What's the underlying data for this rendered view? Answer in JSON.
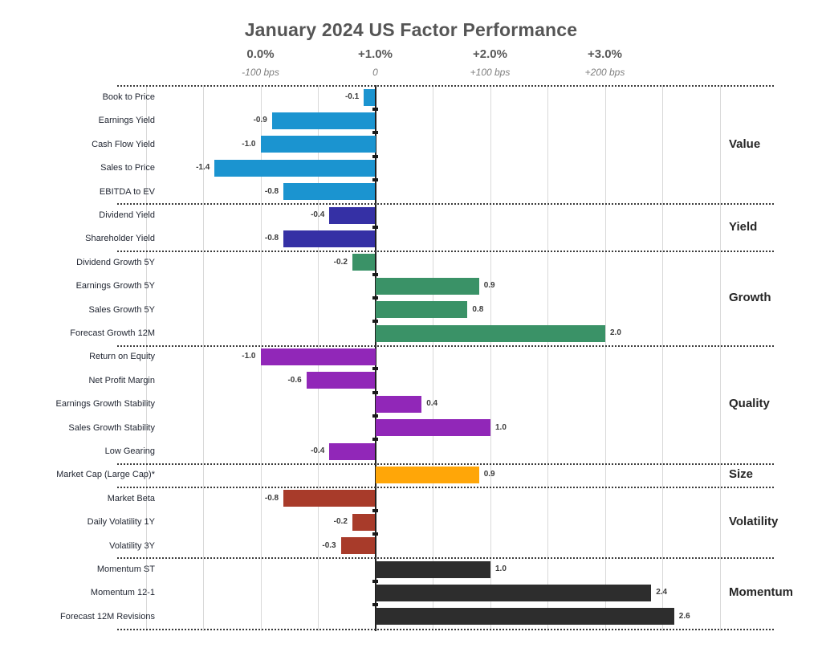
{
  "chart_data": {
    "type": "bar",
    "orientation": "horizontal",
    "title": "January 2024 US Factor Performance",
    "axis_ticks": [
      {
        "percent": "0.0%",
        "bps": "-100 bps",
        "value": -1.0
      },
      {
        "percent": "+1.0%",
        "bps": "0",
        "value": 0.0
      },
      {
        "percent": "+2.0%",
        "bps": "+100 bps",
        "value": 1.0
      },
      {
        "percent": "+3.0%",
        "bps": "+200 bps",
        "value": 2.0
      }
    ],
    "value_range": {
      "min": -2.0,
      "max": 3.0,
      "gridline_step": 0.5
    },
    "unit": "%",
    "legend_position": "right-group-labels",
    "grid": true,
    "groups": [
      {
        "name": "Value",
        "color": "#1b94d0",
        "items": [
          {
            "label": "Book to Price",
            "value": -0.1
          },
          {
            "label": "Earnings Yield",
            "value": -0.9
          },
          {
            "label": "Cash Flow Yield",
            "value": -1.0
          },
          {
            "label": "Sales to Price",
            "value": -1.4
          },
          {
            "label": "EBITDA to EV",
            "value": -0.8
          }
        ]
      },
      {
        "name": "Yield",
        "color": "#3530a5",
        "items": [
          {
            "label": "Dividend Yield",
            "value": -0.4
          },
          {
            "label": "Shareholder Yield",
            "value": -0.8
          }
        ]
      },
      {
        "name": "Growth",
        "color": "#3a9267",
        "items": [
          {
            "label": "Dividend Growth 5Y",
            "value": -0.2
          },
          {
            "label": "Earnings Growth 5Y",
            "value": 0.9
          },
          {
            "label": "Sales Growth 5Y",
            "value": 0.8
          },
          {
            "label": "Forecast Growth 12M",
            "value": 2.0
          }
        ]
      },
      {
        "name": "Quality",
        "color": "#9127b8",
        "items": [
          {
            "label": "Return on Equity",
            "value": -1.0
          },
          {
            "label": "Net Profit Margin",
            "value": -0.6
          },
          {
            "label": "Earnings Growth Stability",
            "value": 0.4
          },
          {
            "label": "Sales Growth Stability",
            "value": 1.0
          },
          {
            "label": "Low Gearing",
            "value": -0.4
          }
        ]
      },
      {
        "name": "Size",
        "color": "#ffa608",
        "items": [
          {
            "label": "Market Cap (Large Cap)*",
            "value": 0.9
          }
        ]
      },
      {
        "name": "Volatility",
        "color": "#a83b2a",
        "items": [
          {
            "label": "Market Beta",
            "value": -0.8
          },
          {
            "label": "Daily Volatility 1Y",
            "value": -0.2
          },
          {
            "label": "Volatility 3Y",
            "value": -0.3
          }
        ]
      },
      {
        "name": "Momentum",
        "color": "#2d2d2d",
        "items": [
          {
            "label": "Momentum ST",
            "value": 1.0
          },
          {
            "label": "Momentum 12-1",
            "value": 2.4
          },
          {
            "label": "Forecast 12M Revisions",
            "value": 2.6
          }
        ]
      }
    ]
  }
}
